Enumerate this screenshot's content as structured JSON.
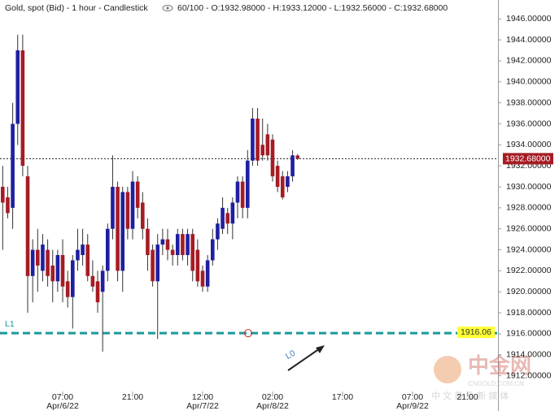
{
  "chart_data": {
    "type": "candlestick",
    "title": "Gold, spot (Bid) - 1 hour - Candlestick",
    "info": "60/100 - O:1932.98000 - H:1933.12000 - L:1932.56000 - C:1932.68000",
    "up_color": "#1f1fa0",
    "down_color": "#a51c24",
    "x": [
      0,
      1,
      2,
      3,
      4,
      5,
      6,
      7,
      8,
      9,
      10,
      11,
      12,
      13,
      14,
      15,
      16,
      17,
      18,
      19,
      20,
      21,
      22,
      23,
      24,
      25,
      26,
      27,
      28,
      29,
      30,
      31,
      32,
      33,
      34,
      35,
      36,
      37,
      38,
      39,
      40,
      41,
      42,
      43,
      44,
      45,
      46,
      47,
      48,
      49,
      50,
      51,
      52,
      53,
      54,
      55,
      56,
      57,
      58,
      59
    ],
    "open": [
      1930,
      1929,
      1928,
      1936,
      1943,
      1931,
      1921.5,
      1924,
      1922,
      1924,
      1922.5,
      1921,
      1923.5,
      1921,
      1919.5,
      1923,
      1923.5,
      1924.5,
      1921.5,
      1921,
      1920,
      1922,
      1926,
      1930,
      1922,
      1929.5,
      1926,
      1930.5,
      1928.5,
      1926,
      1924,
      1921,
      1924.5,
      1925,
      1924,
      1923.5,
      1925.5,
      1923.5,
      1925.5,
      1924,
      1922,
      1920.5,
      1923,
      1925,
      1926,
      1927.5,
      1926.5,
      1928.5,
      1930.5,
      1928,
      1932.5,
      1936.5,
      1934,
      1935,
      1934.5,
      1932,
      1931,
      1930,
      1931,
      1932.98
    ],
    "high": [
      1932,
      1930,
      1938,
      1944.5,
      1944.5,
      1932,
      1925,
      1926,
      1925.5,
      1925,
      1924,
      1924,
      1925,
      1922,
      1923.5,
      1926,
      1926,
      1925.5,
      1923,
      1922,
      1922.5,
      1926.5,
      1933,
      1930.5,
      1930,
      1930,
      1931.5,
      1931,
      1929.5,
      1927,
      1924.5,
      1925.5,
      1926,
      1926,
      1924.5,
      1926,
      1926,
      1926,
      1926,
      1925,
      1922.5,
      1923.5,
      1926,
      1927,
      1929,
      1928,
      1929,
      1931,
      1931,
      1933.5,
      1937.5,
      1937.5,
      1936.5,
      1936,
      1935,
      1932.5,
      1931.5,
      1931.5,
      1933.5,
      1933.12
    ],
    "low": [
      1924,
      1927,
      1926,
      1934,
      1931,
      1918,
      1919,
      1920,
      1921,
      1920.5,
      1919,
      1920,
      1919,
      1918.5,
      1916.5,
      1922,
      1922.5,
      1921,
      1920,
      1918,
      1914.3,
      1921,
      1925,
      1921,
      1920,
      1925,
      1925,
      1927,
      1925,
      1922,
      1920.5,
      1915.5,
      1923.5,
      1923,
      1922.5,
      1922.5,
      1923,
      1922.5,
      1921,
      1920.5,
      1920,
      1920,
      1922.5,
      1924,
      1925.5,
      1925.5,
      1925,
      1927,
      1927,
      1927,
      1932,
      1932,
      1932.5,
      1932.5,
      1930.5,
      1929.5,
      1928.8,
      1929.5,
      1930.5,
      1932.56
    ],
    "close": [
      1928.5,
      1927.5,
      1936,
      1943,
      1932,
      1921.5,
      1924,
      1922.5,
      1924.5,
      1921.5,
      1921,
      1923.5,
      1920.5,
      1919.5,
      1923,
      1924,
      1924.5,
      1921.5,
      1920.5,
      1919,
      1922,
      1926,
      1930,
      1922,
      1929.5,
      1926,
      1930.5,
      1928,
      1926,
      1923.5,
      1921,
      1924.5,
      1925,
      1924,
      1923.5,
      1925.5,
      1923.5,
      1925.5,
      1922,
      1921,
      1920.5,
      1923,
      1925,
      1926.5,
      1928,
      1926.5,
      1928.5,
      1930.5,
      1928,
      1932.5,
      1936.5,
      1932.5,
      1933,
      1933,
      1931,
      1930,
      1929,
      1931,
      1933,
      1932.68
    ],
    "xlim": [
      -0.54,
      99.1
    ],
    "xticks": [
      {
        "value": 12,
        "label": "07:00"
      },
      {
        "value": 26,
        "label": "21:00"
      },
      {
        "value": 40,
        "label": "12:00"
      },
      {
        "value": 54,
        "label": "02:00"
      },
      {
        "value": 68,
        "label": "17:00"
      },
      {
        "value": 82,
        "label": "07:00"
      },
      {
        "value": 93,
        "label": "21:00"
      }
    ],
    "xdates": [
      {
        "value": 12,
        "label": "Apr/6/22"
      },
      {
        "value": 40,
        "label": "Apr/7/22"
      },
      {
        "value": 54,
        "label": "Apr/8/22"
      },
      {
        "value": 82,
        "label": "Apr/9/22"
      }
    ],
    "ylim": [
      1910.5,
      1947.8
    ],
    "yticks": [
      {
        "value": 1912,
        "label": "1912.00000"
      },
      {
        "value": 1914,
        "label": "1914.00000"
      },
      {
        "value": 1916,
        "label": "1916.00000"
      },
      {
        "value": 1918,
        "label": "1918.00000"
      },
      {
        "value": 1920,
        "label": "1920.00000"
      },
      {
        "value": 1922,
        "label": "1922.00000"
      },
      {
        "value": 1924,
        "label": "1924.00000"
      },
      {
        "value": 1926,
        "label": "1926.00000"
      },
      {
        "value": 1928,
        "label": "1928.00000"
      },
      {
        "value": 1930,
        "label": "1930.00000"
      },
      {
        "value": 1932,
        "label": "1932.00000"
      },
      {
        "value": 1934,
        "label": "1934.00000"
      },
      {
        "value": 1936,
        "label": "1936.00000"
      },
      {
        "value": 1938,
        "label": "1938.00000"
      },
      {
        "value": 1940,
        "label": "1940.00000"
      },
      {
        "value": 1942,
        "label": "1942.00000"
      },
      {
        "value": 1944,
        "label": "1944.00000"
      },
      {
        "value": 1946,
        "label": "1946.00000"
      }
    ],
    "last_price": {
      "value": 1932.68,
      "label": "1932.68000",
      "color": "#a51c24"
    },
    "level_line": {
      "name": "L1",
      "value": 1916.06,
      "label": "1916.06",
      "color": "#1a9a9a"
    },
    "trend_label": "L0",
    "watermark": {
      "title": "中金网",
      "url": "CNGOLD.COM.CN",
      "tagline": "中 文 黄 金 新 媒 体"
    }
  }
}
